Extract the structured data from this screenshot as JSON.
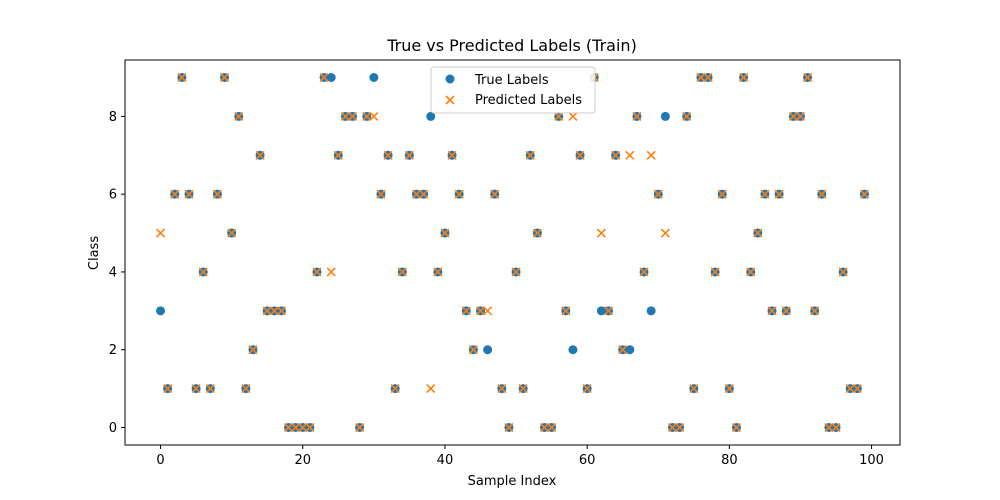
{
  "chart_data": {
    "type": "scatter",
    "title": "True vs Predicted Labels (Train)",
    "xlabel": "Sample Index",
    "ylabel": "Class",
    "xlim": [
      -5,
      104
    ],
    "ylim": [
      -0.45,
      9.45
    ],
    "xticks": [
      0,
      20,
      40,
      60,
      80,
      100
    ],
    "yticks": [
      0,
      2,
      4,
      6,
      8
    ],
    "grid": false,
    "legend_position": "top-center",
    "x": [
      0,
      1,
      2,
      3,
      4,
      5,
      6,
      7,
      8,
      9,
      10,
      11,
      12,
      13,
      14,
      15,
      16,
      17,
      18,
      19,
      20,
      21,
      22,
      23,
      24,
      25,
      26,
      27,
      28,
      29,
      30,
      31,
      32,
      33,
      34,
      35,
      36,
      37,
      38,
      39,
      40,
      41,
      42,
      43,
      44,
      45,
      46,
      47,
      48,
      49,
      50,
      51,
      52,
      53,
      54,
      55,
      56,
      57,
      58,
      59,
      60,
      61,
      62,
      63,
      64,
      65,
      66,
      67,
      68,
      69,
      70,
      71,
      72,
      73,
      74,
      75,
      76,
      77,
      78,
      79,
      80,
      81,
      82,
      83,
      84,
      85,
      86,
      87,
      88,
      89,
      90,
      91,
      92,
      93,
      94,
      95,
      96,
      97,
      98,
      99
    ],
    "series": [
      {
        "name": "True Labels",
        "marker": "circle",
        "color": "#1f77b4",
        "values": [
          3,
          1,
          6,
          9,
          6,
          1,
          4,
          1,
          6,
          9,
          5,
          8,
          1,
          2,
          7,
          3,
          3,
          3,
          0,
          0,
          0,
          0,
          4,
          9,
          9,
          7,
          8,
          8,
          0,
          8,
          9,
          6,
          7,
          1,
          4,
          7,
          6,
          6,
          8,
          4,
          5,
          7,
          6,
          3,
          2,
          3,
          2,
          6,
          1,
          0,
          4,
          1,
          7,
          5,
          0,
          0,
          8,
          3,
          2,
          7,
          1,
          9,
          3,
          3,
          7,
          2,
          2,
          8,
          4,
          3,
          6,
          8,
          0,
          0,
          8,
          1,
          9,
          9,
          4,
          6,
          1,
          0,
          9,
          4,
          5,
          6,
          3,
          6,
          3,
          8,
          8,
          9,
          3,
          6,
          0,
          0,
          4,
          1,
          1,
          6
        ]
      },
      {
        "name": "Predicted Labels",
        "marker": "x",
        "color": "#ff7f0e",
        "values": [
          5,
          1,
          6,
          9,
          6,
          1,
          4,
          1,
          6,
          9,
          5,
          8,
          1,
          2,
          7,
          3,
          3,
          3,
          0,
          0,
          0,
          0,
          4,
          9,
          4,
          7,
          8,
          8,
          0,
          8,
          8,
          6,
          7,
          1,
          4,
          7,
          6,
          6,
          1,
          4,
          5,
          7,
          6,
          3,
          2,
          3,
          3,
          6,
          1,
          0,
          4,
          1,
          7,
          5,
          0,
          0,
          8,
          3,
          8,
          7,
          1,
          9,
          5,
          3,
          7,
          2,
          7,
          8,
          4,
          7,
          6,
          5,
          0,
          0,
          8,
          1,
          9,
          9,
          4,
          6,
          1,
          0,
          9,
          4,
          5,
          6,
          3,
          6,
          3,
          8,
          8,
          9,
          3,
          6,
          0,
          0,
          4,
          1,
          1,
          6
        ]
      }
    ]
  }
}
